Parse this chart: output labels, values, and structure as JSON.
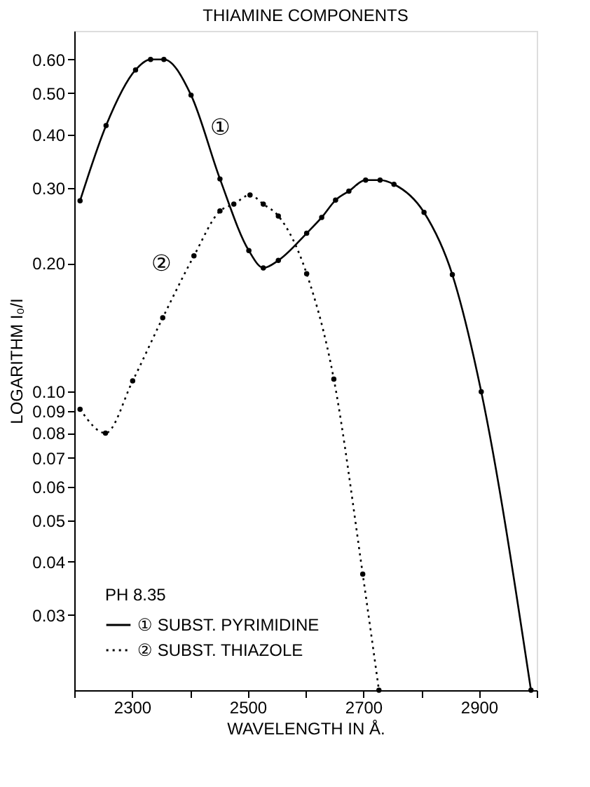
{
  "chart_data": {
    "type": "line",
    "title": "THIAMINE COMPONENTS",
    "xlabel": "WAVELENGTH IN Å.",
    "ylabel": "LOGARITHM I₀/I",
    "legend_title": "PH 8.35",
    "series": [
      {
        "name": "① SUBST. PYRIMIDINE",
        "color": "#000000",
        "line_style": "solid",
        "x": [
          2210,
          2255,
          2306,
          2332,
          2355,
          2402,
          2452,
          2502,
          2527,
          2553,
          2602,
          2628,
          2652,
          2675,
          2704,
          2729,
          2753,
          2805,
          2854,
          2904,
          2990
        ],
        "values": [
          0.28,
          0.42,
          0.567,
          0.6,
          0.6,
          0.495,
          0.315,
          0.214,
          0.195,
          0.203,
          0.235,
          0.256,
          0.281,
          0.295,
          0.313,
          0.313,
          0.306,
          0.263,
          0.188,
          0.1,
          0.02
        ]
      },
      {
        "name": "② SUBST. THIAZOLE",
        "color": "#000000",
        "line_style": "dotted",
        "x": [
          2210,
          2254,
          2301,
          2353,
          2407,
          2452,
          2476,
          2504,
          2527,
          2553,
          2602,
          2649,
          2699,
          2727
        ],
        "values": [
          0.091,
          0.08,
          0.106,
          0.149,
          0.208,
          0.265,
          0.275,
          0.289,
          0.275,
          0.258,
          0.189,
          0.107,
          0.0374,
          0.02
        ]
      }
    ],
    "xlim": [
      2200,
      3000
    ],
    "xticks": [
      {
        "value": 2200,
        "label": null
      },
      2300,
      {
        "value": 2400,
        "label": null
      },
      2500,
      {
        "value": 2600,
        "label": null
      },
      2700,
      {
        "value": 2800,
        "label": null
      },
      2900,
      {
        "value": 3000,
        "label": null
      }
    ],
    "ylim": [
      0.02,
      0.7
    ],
    "log": true,
    "yticks": [
      {
        "value": 0.6,
        "label": "0.60"
      },
      {
        "value": 0.5,
        "label": "0.50"
      },
      {
        "value": 0.4,
        "label": "0.40"
      },
      {
        "value": 0.3,
        "label": "0.30"
      },
      {
        "value": 0.2,
        "label": "0.20"
      },
      {
        "value": 0.1,
        "label": "0.10"
      },
      0.09,
      0.08,
      0.07,
      0.06,
      0.05,
      0.04,
      0.03
    ],
    "annotations": [
      "①",
      "②"
    ],
    "marker": "circle",
    "grid": false,
    "legend": "bottom left"
  }
}
